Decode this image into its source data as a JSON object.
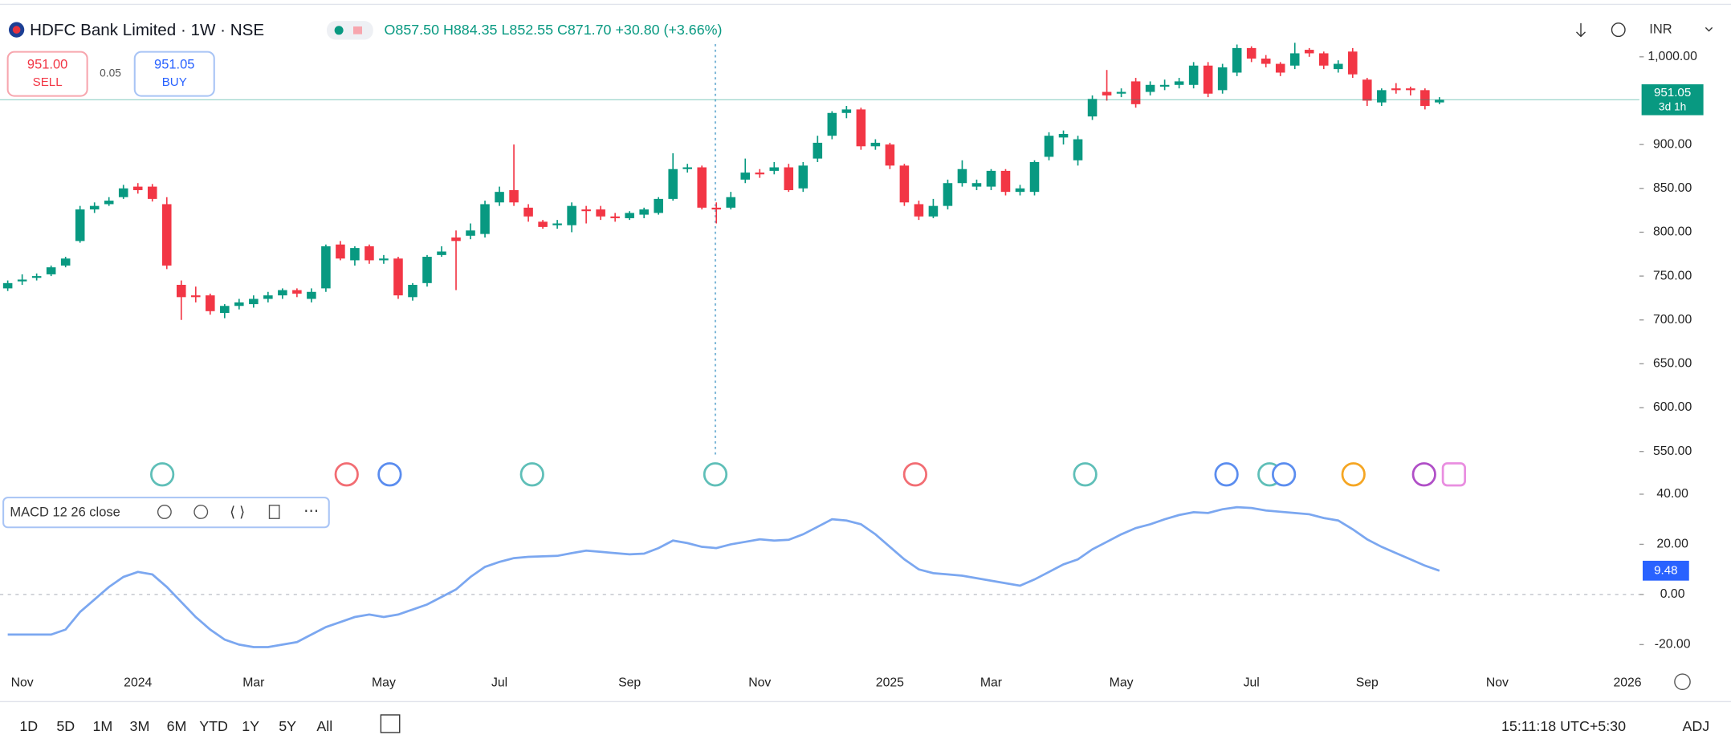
{
  "header": {
    "title": "HDFC Bank Limited · 1W · NSE",
    "ohlc": "O857.50 H884.35 L852.55 C871.70 +30.80 (+3.66%)",
    "sell_price": "951.00",
    "sell_label": "SELL",
    "spread": "0.05",
    "buy_price": "951.05",
    "buy_label": "BUY",
    "currency": "INR"
  },
  "indicator_legend": "MACD 12 26 close",
  "countdown": "3d 1h",
  "ranges": [
    "1D",
    "5D",
    "1M",
    "3M",
    "6M",
    "YTD",
    "1Y",
    "5Y",
    "All"
  ],
  "clock": "15:11:18 UTC+5:30",
  "adj": "ADJ",
  "chart_data": [
    {
      "type": "candlestick",
      "up_color": "#089981",
      "down_color": "#f23645",
      "categories": [
        null,
        "Nov",
        null,
        null,
        null,
        null,
        null,
        null,
        null,
        "2024",
        null,
        null,
        null,
        null,
        null,
        null,
        null,
        "Mar",
        null,
        null,
        null,
        null,
        null,
        null,
        null,
        null,
        "May",
        null,
        null,
        null,
        null,
        null,
        null,
        null,
        "Jul",
        null,
        null,
        null,
        null,
        null,
        null,
        null,
        null,
        "Sep",
        null,
        null,
        null,
        null,
        null,
        null,
        null,
        null,
        "Nov",
        null,
        null,
        null,
        null,
        null,
        null,
        null,
        null,
        "2025",
        null,
        null,
        null,
        null,
        null,
        null,
        "Mar",
        null,
        null,
        null,
        null,
        null,
        null,
        null,
        null,
        "May",
        null,
        null,
        null,
        null,
        null,
        null,
        null,
        null,
        "Jul",
        null,
        null,
        null,
        null,
        null,
        null,
        null,
        "Sep",
        null,
        null,
        null,
        null,
        null,
        null,
        null,
        null,
        "Nov",
        null,
        null,
        null,
        null,
        null,
        null,
        null,
        null,
        "2026"
      ],
      "open": [
        736,
        744,
        748,
        752,
        762,
        790,
        826,
        832,
        840,
        852,
        852,
        832,
        740,
        728,
        728,
        708,
        716,
        718,
        724,
        728,
        734,
        724,
        736,
        786,
        768,
        784,
        768,
        770,
        726,
        742,
        774,
        794,
        796,
        798,
        834,
        848,
        828,
        812,
        808,
        808,
        826,
        826,
        818,
        816,
        820,
        822,
        838,
        872,
        874,
        828,
        828,
        860,
        868,
        870,
        874,
        850,
        884,
        910,
        936,
        940,
        898,
        900,
        876,
        832,
        818,
        830,
        856,
        852,
        852,
        870,
        846,
        846,
        886,
        908,
        882,
        932,
        960,
        958,
        972,
        960,
        966,
        968,
        968,
        990,
        962,
        982,
        1010,
        998,
        992,
        990,
        1008,
        1004,
        986,
        1006,
        974,
        948,
        964,
        964,
        962,
        948,
        null,
        null,
        null,
        null,
        null,
        null,
        null,
        null,
        null,
        null,
        null,
        null,
        null
      ],
      "high": [
        745,
        752,
        753,
        762,
        772,
        830,
        834,
        840,
        854,
        856,
        855,
        840,
        745,
        738,
        730,
        718,
        724,
        728,
        732,
        736,
        736,
        736,
        786,
        790,
        784,
        786,
        774,
        772,
        742,
        774,
        784,
        802,
        810,
        836,
        852,
        900,
        832,
        814,
        814,
        834,
        830,
        830,
        822,
        824,
        828,
        840,
        890,
        878,
        876,
        834,
        846,
        884,
        872,
        880,
        878,
        880,
        910,
        938,
        944,
        942,
        906,
        902,
        878,
        836,
        838,
        860,
        882,
        860,
        872,
        872,
        854,
        882,
        914,
        916,
        910,
        956,
        985,
        964,
        976,
        972,
        974,
        976,
        994,
        994,
        992,
        1014,
        1012,
        1002,
        994,
        1016,
        1010,
        1006,
        996,
        1010,
        976,
        964,
        970,
        966,
        964,
        954,
        null,
        null,
        null,
        null,
        null,
        null,
        null,
        null,
        null,
        null,
        null,
        null,
        null
      ],
      "low": [
        733,
        740,
        745,
        750,
        760,
        788,
        822,
        830,
        838,
        844,
        835,
        758,
        700,
        720,
        706,
        702,
        712,
        714,
        720,
        724,
        726,
        720,
        732,
        768,
        762,
        764,
        764,
        724,
        722,
        738,
        772,
        734,
        792,
        794,
        830,
        830,
        812,
        804,
        804,
        800,
        810,
        814,
        812,
        814,
        816,
        820,
        836,
        868,
        826,
        810,
        826,
        856,
        862,
        866,
        846,
        846,
        880,
        906,
        930,
        894,
        894,
        872,
        830,
        814,
        816,
        826,
        852,
        848,
        848,
        842,
        842,
        842,
        882,
        900,
        876,
        928,
        950,
        954,
        942,
        956,
        962,
        964,
        964,
        954,
        958,
        978,
        994,
        988,
        978,
        986,
        1000,
        986,
        982,
        976,
        944,
        944,
        958,
        956,
        940,
        946,
        null,
        null,
        null,
        null,
        null,
        null,
        null,
        null,
        null,
        null,
        null,
        null,
        null
      ],
      "close": [
        742,
        746,
        750,
        760,
        770,
        826,
        830,
        836,
        850,
        848,
        838,
        762,
        726,
        726,
        710,
        716,
        720,
        724,
        728,
        734,
        730,
        732,
        784,
        770,
        782,
        768,
        770,
        728,
        740,
        772,
        778,
        790,
        802,
        832,
        846,
        834,
        818,
        806,
        810,
        830,
        824,
        818,
        816,
        822,
        826,
        838,
        872,
        874,
        828,
        826,
        840,
        868,
        866,
        874,
        848,
        876,
        902,
        936,
        940,
        898,
        902,
        876,
        834,
        818,
        830,
        856,
        872,
        856,
        870,
        846,
        850,
        880,
        910,
        912,
        906,
        952,
        956,
        960,
        946,
        968,
        968,
        972,
        990,
        958,
        988,
        1010,
        998,
        992,
        982,
        1004,
        1004,
        990,
        992,
        980,
        950,
        962,
        962,
        962,
        944,
        951.05,
        null,
        null,
        null,
        null,
        null,
        null,
        null,
        null,
        null,
        null,
        null,
        null,
        null
      ],
      "ylim": [
        500,
        1050
      ],
      "yticks": [
        {
          "value": 1000,
          "label": "1,000.00"
        },
        {
          "value": 900,
          "label": "900.00"
        },
        {
          "value": 850,
          "label": "850.00"
        },
        {
          "value": 800,
          "label": "800.00"
        },
        {
          "value": 750,
          "label": "750.00"
        },
        {
          "value": 700,
          "label": "700.00"
        },
        {
          "value": 650,
          "label": "650.00"
        },
        {
          "value": 600,
          "label": "600.00"
        },
        {
          "value": 550,
          "label": "550.00"
        }
      ]
    },
    {
      "type": "line",
      "color": "#7ba7f0",
      "values": [
        -16,
        -16,
        -16,
        -16,
        -14,
        -7,
        -2,
        3,
        7,
        9,
        8,
        3,
        -3,
        -9,
        -14,
        -18,
        -20,
        -21,
        -21,
        -20,
        -19,
        -16,
        -13,
        -11,
        -9,
        -8,
        -9,
        -8,
        -6,
        -4,
        -1,
        2,
        7,
        11,
        13,
        14.5,
        15,
        15.2,
        15.4,
        16.5,
        17.5,
        17,
        16.5,
        16,
        16.3,
        18.5,
        21.5,
        20.5,
        19,
        18.5,
        20,
        21,
        22,
        21.5,
        21.8,
        24,
        27,
        30,
        29.5,
        28,
        24,
        19,
        14,
        10,
        8.5,
        8,
        7.5,
        6.5,
        5.5,
        4.5,
        3.5,
        6,
        9,
        12,
        14,
        18,
        21,
        24,
        26.5,
        28,
        30,
        31.7,
        32.8,
        32.5,
        34,
        34.8,
        34.5,
        33.5,
        33,
        32.5,
        32,
        30.5,
        29.5,
        26,
        22,
        19,
        16.5,
        14,
        11.5,
        9.48,
        null,
        null,
        null,
        null,
        null,
        null,
        null,
        null,
        null,
        null,
        null,
        null,
        null
      ],
      "ylim": [
        -30,
        45
      ],
      "yticks": [
        {
          "value": 40,
          "label": "40.00"
        },
        {
          "value": 20,
          "label": "20.00"
        },
        {
          "value": 0,
          "label": "0.00"
        },
        {
          "value": -20,
          "label": "-20.00"
        }
      ]
    }
  ]
}
